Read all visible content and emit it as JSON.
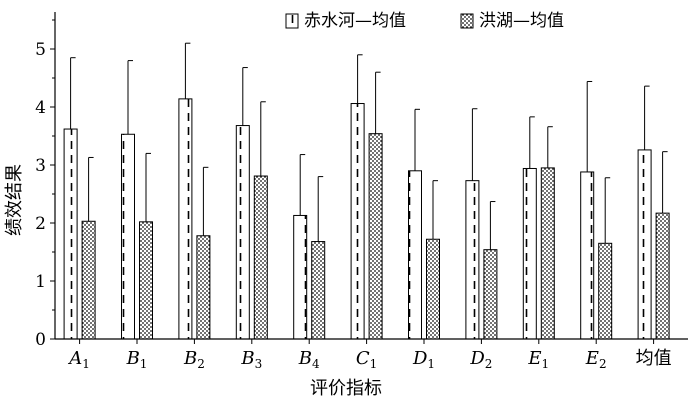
{
  "chart_data": {
    "type": "bar",
    "title": "",
    "xlabel": "评价指标",
    "ylabel": "绩效结果",
    "ylim": [
      0,
      5.5
    ],
    "yticks": [
      0,
      1,
      2,
      3,
      4,
      5
    ],
    "grid": false,
    "legend_position": "top-right",
    "categories": [
      {
        "base": "A",
        "sub": "1"
      },
      {
        "base": "B",
        "sub": "1"
      },
      {
        "base": "B",
        "sub": "2"
      },
      {
        "base": "B",
        "sub": "3"
      },
      {
        "base": "B",
        "sub": "4"
      },
      {
        "base": "C",
        "sub": "1"
      },
      {
        "base": "D",
        "sub": "1"
      },
      {
        "base": "D",
        "sub": "2"
      },
      {
        "base": "E",
        "sub": "1"
      },
      {
        "base": "E",
        "sub": "2"
      },
      {
        "base": "均值",
        "sub": ""
      }
    ],
    "series": [
      {
        "name": "赤水河—均值",
        "pattern": "dashed",
        "values": [
          3.62,
          3.53,
          4.14,
          3.68,
          2.13,
          4.06,
          2.9,
          2.73,
          2.94,
          2.88,
          3.26
        ],
        "errors": [
          1.23,
          1.27,
          0.96,
          1.0,
          1.05,
          0.84,
          1.06,
          1.24,
          0.89,
          1.56,
          1.1
        ]
      },
      {
        "name": "洪湖—均值",
        "pattern": "dotted",
        "values": [
          2.03,
          2.02,
          1.78,
          2.81,
          1.68,
          3.54,
          1.72,
          1.54,
          2.95,
          1.65,
          2.17
        ],
        "errors": [
          1.1,
          1.18,
          1.18,
          1.28,
          1.12,
          1.06,
          1.01,
          0.83,
          0.71,
          1.13,
          1.06
        ]
      }
    ],
    "colors": {
      "stroke": "#000000",
      "fill": "#ffffff"
    }
  }
}
